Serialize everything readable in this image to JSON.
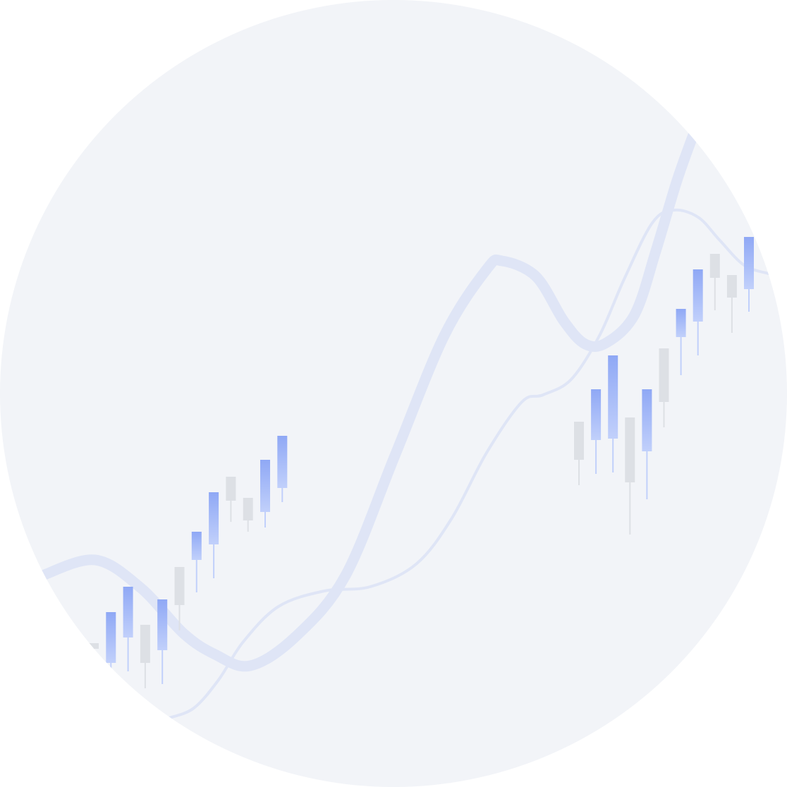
{
  "colors": {
    "background": "#f2f4f8",
    "curve": "#dfe5f6",
    "bullish_top": "#8fa8f5",
    "bullish_bottom": "#c1d0fb",
    "bearish": "#dde0e5"
  },
  "chart_data": {
    "type": "candlestick",
    "title": "",
    "xlabel": "",
    "ylabel": "",
    "grid": false,
    "legend": "none",
    "candles_left": [
      {
        "dir": "down",
        "open": 204,
        "close": 196,
        "high": 204,
        "low": 172
      },
      {
        "dir": "up",
        "open": 176,
        "close": 248,
        "high": 248,
        "low": 156
      },
      {
        "dir": "up",
        "open": 212,
        "close": 284,
        "high": 284,
        "low": 164
      },
      {
        "dir": "down",
        "open": 230,
        "close": 176,
        "high": 230,
        "low": 140
      },
      {
        "dir": "up",
        "open": 194,
        "close": 266,
        "high": 266,
        "low": 146
      },
      {
        "dir": "down",
        "open": 312,
        "close": 258,
        "high": 312,
        "low": 222
      },
      {
        "dir": "up",
        "open": 322,
        "close": 362,
        "high": 362,
        "low": 276
      },
      {
        "dir": "up",
        "open": 344,
        "close": 418,
        "high": 418,
        "low": 296
      },
      {
        "dir": "down",
        "open": 440,
        "close": 406,
        "high": 440,
        "low": 376
      },
      {
        "dir": "down",
        "open": 410,
        "close": 378,
        "high": 410,
        "low": 362
      },
      {
        "dir": "up",
        "open": 390,
        "close": 464,
        "high": 464,
        "low": 368
      },
      {
        "dir": "up",
        "open": 424,
        "close": 498,
        "high": 498,
        "low": 404
      }
    ],
    "candles_right": [
      {
        "dir": "down",
        "open": 518,
        "close": 464,
        "high": 518,
        "low": 428
      },
      {
        "dir": "up",
        "open": 492,
        "close": 564,
        "high": 564,
        "low": 444
      },
      {
        "dir": "up",
        "open": 494,
        "close": 612,
        "high": 612,
        "low": 446
      },
      {
        "dir": "down",
        "open": 524,
        "close": 432,
        "high": 524,
        "low": 358
      },
      {
        "dir": "up",
        "open": 476,
        "close": 564,
        "high": 564,
        "low": 408
      },
      {
        "dir": "down",
        "open": 622,
        "close": 546,
        "high": 622,
        "low": 510
      },
      {
        "dir": "up",
        "open": 638,
        "close": 678,
        "high": 678,
        "low": 584
      },
      {
        "dir": "up",
        "open": 660,
        "close": 734,
        "high": 734,
        "low": 612
      },
      {
        "dir": "down",
        "open": 756,
        "close": 722,
        "high": 756,
        "low": 676
      },
      {
        "dir": "down",
        "open": 726,
        "close": 694,
        "high": 726,
        "low": 644
      },
      {
        "dir": "up",
        "open": 706,
        "close": 780,
        "high": 780,
        "low": 674
      }
    ],
    "moving_average_thick": [
      [
        60,
        300
      ],
      [
        135,
        322
      ],
      [
        200,
        282
      ],
      [
        260,
        218
      ],
      [
        305,
        188
      ],
      [
        355,
        172
      ],
      [
        420,
        214
      ],
      [
        490,
        300
      ],
      [
        560,
        470
      ],
      [
        630,
        640
      ],
      [
        690,
        734
      ],
      [
        712,
        746
      ],
      [
        760,
        724
      ],
      [
        800,
        660
      ],
      [
        830,
        628
      ],
      [
        860,
        630
      ],
      [
        900,
        670
      ],
      [
        930,
        760
      ],
      [
        960,
        860
      ],
      [
        985,
        930
      ]
    ],
    "moving_average_thin": [
      [
        240,
        98
      ],
      [
        275,
        112
      ],
      [
        310,
        152
      ],
      [
        345,
        206
      ],
      [
        395,
        256
      ],
      [
        460,
        278
      ],
      [
        525,
        284
      ],
      [
        590,
        316
      ],
      [
        640,
        380
      ],
      [
        690,
        474
      ],
      [
        740,
        546
      ],
      [
        770,
        556
      ],
      [
        810,
        578
      ],
      [
        850,
        640
      ],
      [
        885,
        720
      ],
      [
        925,
        800
      ],
      [
        955,
        818
      ],
      [
        990,
        808
      ],
      [
        1020,
        776
      ],
      [
        1055,
        740
      ],
      [
        1090,
        728
      ]
    ]
  }
}
